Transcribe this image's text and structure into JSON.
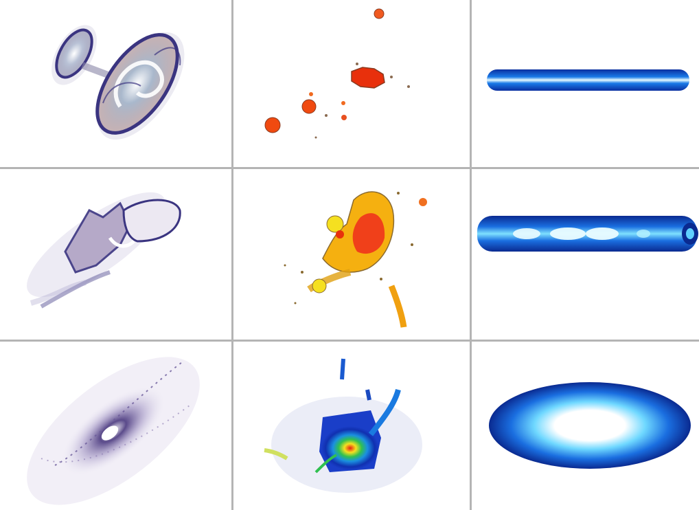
{
  "figure": {
    "rows": 3,
    "columns": 3,
    "panels": [
      {
        "row": 1,
        "col": 1,
        "subject": "interacting-spiral-pair",
        "palette": "purple-contour"
      },
      {
        "row": 1,
        "col": 2,
        "subject": "scattered-clumps",
        "palette": "red-orange"
      },
      {
        "row": 1,
        "col": 3,
        "subject": "thin-edge-on-disk",
        "palette": "blue"
      },
      {
        "row": 2,
        "col": 1,
        "subject": "disturbed-merger",
        "palette": "purple-contour"
      },
      {
        "row": 2,
        "col": 2,
        "subject": "clumpy-merger",
        "palette": "red-yellow"
      },
      {
        "row": 2,
        "col": 3,
        "subject": "thick-edge-on-disk",
        "palette": "blue"
      },
      {
        "row": 3,
        "col": 1,
        "subject": "inclined-spiral",
        "palette": "purple-diffuse"
      },
      {
        "row": 3,
        "col": 2,
        "subject": "merger-with-tidal-streams",
        "palette": "rainbow"
      },
      {
        "row": 3,
        "col": 3,
        "subject": "elliptical-disk",
        "palette": "blue"
      }
    ]
  },
  "colors": {
    "background": "#ffffff",
    "divider": "#b4b4b4",
    "purple": "#3a3480",
    "red": "#e23a10",
    "blue": "#0a3fc0",
    "cyan": "#5fd0ff"
  }
}
